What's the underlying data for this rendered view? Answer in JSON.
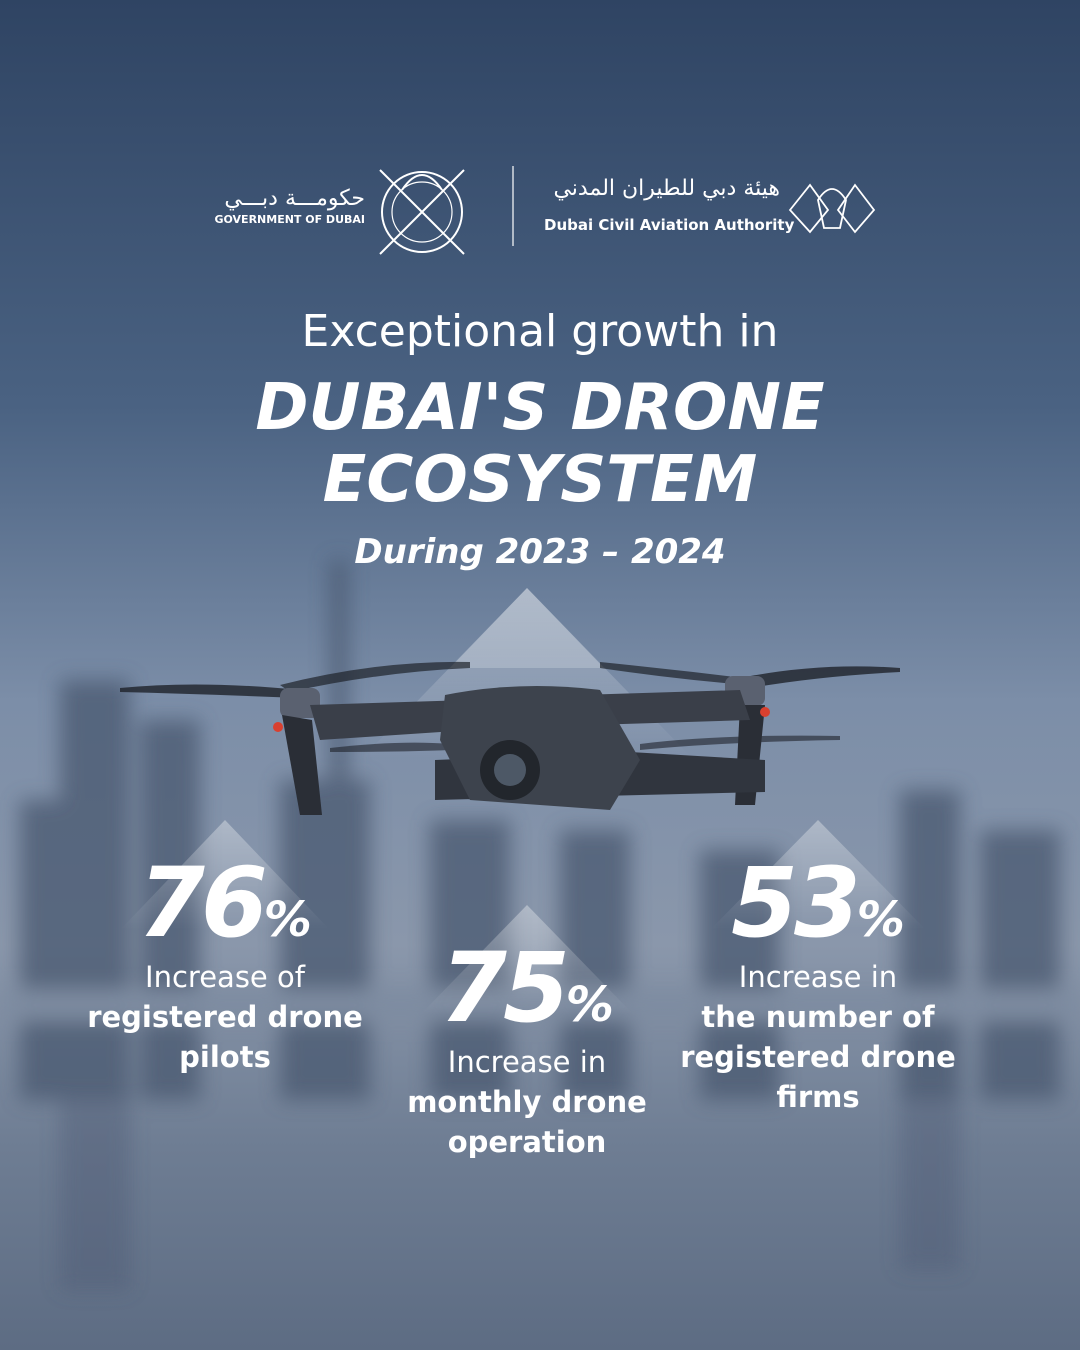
{
  "header": {
    "government": {
      "arabic": "حكومـــة دبـــي",
      "english": "GOVERNMENT OF DUBAI"
    },
    "authority": {
      "arabic": "هيئة دبي للطيران المدني",
      "english": "Dubai Civil Aviation Authority"
    }
  },
  "heading": {
    "intro": "Exceptional growth in",
    "title": [
      "DUBAI'S DRONE",
      "ECOSYSTEM"
    ],
    "period": "During 2023 – 2024"
  },
  "stats": [
    {
      "value": 76,
      "unit": "%",
      "lines": [
        "Increase of",
        "registered drone",
        "pilots"
      ]
    },
    {
      "value": 75,
      "unit": "%",
      "lines": [
        "Increase in",
        "monthly drone",
        "operation"
      ]
    },
    {
      "value": 53,
      "unit": "%",
      "lines": [
        "Increase in",
        "the number of",
        "registered drone",
        "firms"
      ]
    }
  ]
}
